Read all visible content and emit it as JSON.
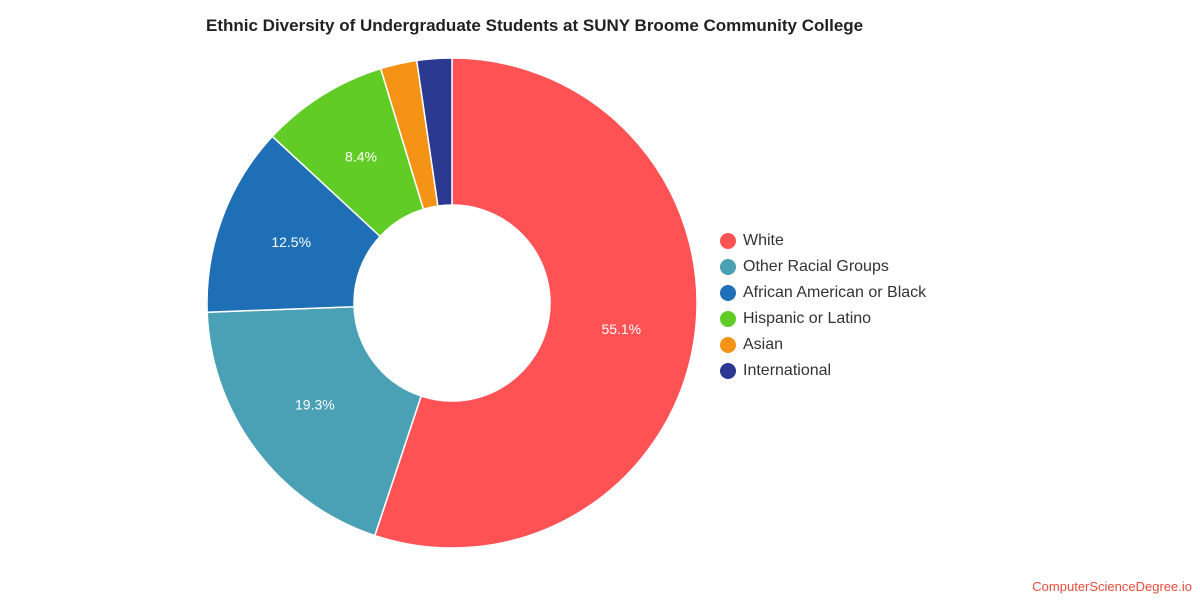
{
  "chart_data": {
    "type": "pie",
    "title": "Ethnic Diversity of Undergraduate Students at SUNY Broome Community College",
    "donut": true,
    "legend_position": "right",
    "slices": [
      {
        "label": "White",
        "value": 55.1,
        "display": "55.1%",
        "color": "#fe5255"
      },
      {
        "label": "Other Racial Groups",
        "value": 19.3,
        "display": "19.3%",
        "color": "#4aa0b4"
      },
      {
        "label": "African American or Black",
        "value": 12.5,
        "display": "12.5%",
        "color": "#1f6fb6"
      },
      {
        "label": "Hispanic or Latino",
        "value": 8.4,
        "display": "8.4%",
        "color": "#61cc26"
      },
      {
        "label": "Asian",
        "value": 2.4,
        "display": "",
        "color": "#f59316"
      },
      {
        "label": "International",
        "value": 2.3,
        "display": "",
        "color": "#2b3990"
      }
    ]
  },
  "watermark": "ComputerScienceDegree.io"
}
